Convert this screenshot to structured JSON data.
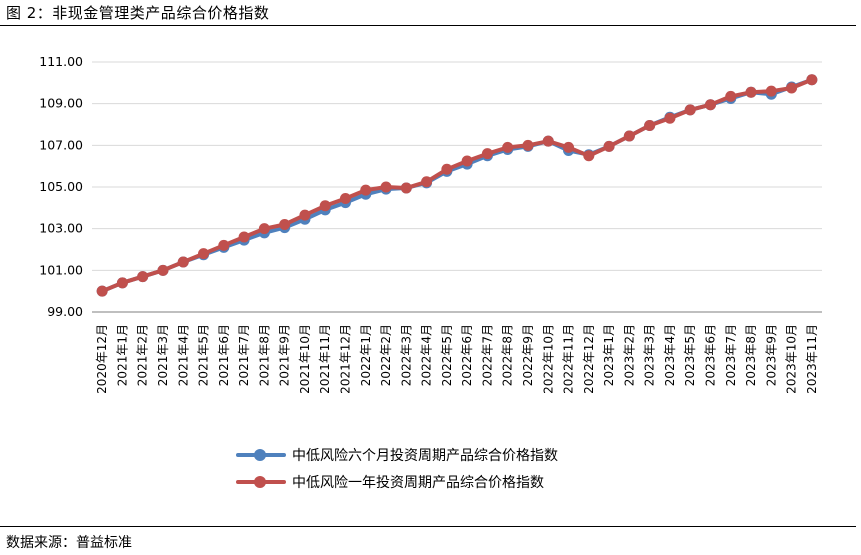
{
  "figure": {
    "title": "图 2：非现金管理类产品综合价格指数",
    "source": "数据来源：普益标准"
  },
  "chart_data": {
    "type": "line",
    "categories": [
      "2020年12月",
      "2021年1月",
      "2021年2月",
      "2021年3月",
      "2021年4月",
      "2021年5月",
      "2021年6月",
      "2021年7月",
      "2021年8月",
      "2021年9月",
      "2021年10月",
      "2021年11月",
      "2021年12月",
      "2022年1月",
      "2022年2月",
      "2022年3月",
      "2022年4月",
      "2022年5月",
      "2022年6月",
      "2022年7月",
      "2022年8月",
      "2022年9月",
      "2022年10月",
      "2022年11月",
      "2022年12月",
      "2023年1月",
      "2023年2月",
      "2023年3月",
      "2023年4月",
      "2023年5月",
      "2023年6月",
      "2023年7月",
      "2023年8月",
      "2023年9月",
      "2023年10月",
      "2023年11月"
    ],
    "series": [
      {
        "name": "中低风险六个月投资周期产品综合价格指数",
        "color": "#4F81BD",
        "values": [
          100.0,
          100.4,
          100.7,
          101.0,
          101.4,
          101.75,
          102.1,
          102.45,
          102.8,
          103.05,
          103.45,
          103.9,
          104.25,
          104.65,
          104.9,
          104.95,
          105.2,
          105.75,
          106.1,
          106.5,
          106.8,
          106.95,
          107.2,
          106.75,
          106.55,
          106.95,
          107.45,
          107.95,
          108.35,
          108.7,
          108.95,
          109.25,
          109.55,
          109.45,
          109.8,
          110.15
        ]
      },
      {
        "name": "中低风险一年投资周期产品综合价格指数",
        "color": "#C0504D",
        "values": [
          100.0,
          100.4,
          100.7,
          101.0,
          101.4,
          101.8,
          102.2,
          102.6,
          103.0,
          103.2,
          103.65,
          104.1,
          104.45,
          104.85,
          105.0,
          104.95,
          105.25,
          105.85,
          106.25,
          106.6,
          106.9,
          107.0,
          107.2,
          106.9,
          106.5,
          106.95,
          107.45,
          107.95,
          108.3,
          108.7,
          108.95,
          109.35,
          109.55,
          109.6,
          109.75,
          110.15
        ]
      }
    ],
    "yticks": [
      "111.00",
      "109.00",
      "107.00",
      "105.00",
      "103.00",
      "101.00",
      "99.00"
    ],
    "ylim": [
      99,
      111
    ],
    "grid": true,
    "legend_position": "bottom"
  }
}
